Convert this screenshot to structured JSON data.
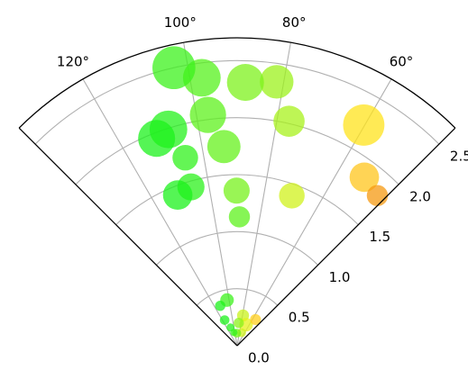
{
  "chart_data": {
    "type": "scatter",
    "projection": "polar",
    "title": "",
    "theta_range_deg": [
      45,
      135
    ],
    "r_range": [
      0,
      2.7
    ],
    "grid": true,
    "theta_ticks": [
      {
        "value": 60,
        "label": "60°"
      },
      {
        "value": 80,
        "label": "80°"
      },
      {
        "value": 100,
        "label": "100°"
      },
      {
        "value": 120,
        "label": "120°"
      }
    ],
    "r_ticks": [
      {
        "value": 0.0,
        "label": "0.0"
      },
      {
        "value": 0.5,
        "label": "0.5"
      },
      {
        "value": 1.0,
        "label": "1.0"
      },
      {
        "value": 1.5,
        "label": "1.5"
      },
      {
        "value": 2.0,
        "label": "2.0"
      },
      {
        "value": 2.5,
        "label": "2.5"
      }
    ],
    "colormap": "hsv",
    "alpha": 0.75,
    "points": [
      {
        "theta": 60.2,
        "r": 2.23,
        "size": 650,
        "color": "#ffe31c"
      },
      {
        "theta": 53.0,
        "r": 1.85,
        "size": 330,
        "color": "#ffc61c"
      },
      {
        "theta": 47.0,
        "r": 1.8,
        "size": 170,
        "color": "#f59a12"
      },
      {
        "theta": 70.0,
        "r": 1.4,
        "size": 250,
        "color": "#d0f21c"
      },
      {
        "theta": 77.0,
        "r": 2.02,
        "size": 370,
        "color": "#a8f21c"
      },
      {
        "theta": 81.5,
        "r": 2.34,
        "size": 430,
        "color": "#9cf21c"
      },
      {
        "theta": 88.2,
        "r": 2.31,
        "size": 520,
        "color": "#7ef21c"
      },
      {
        "theta": 97.5,
        "r": 2.37,
        "size": 540,
        "color": "#55f21c"
      },
      {
        "theta": 102.8,
        "r": 2.5,
        "size": 700,
        "color": "#3cf21c"
      },
      {
        "theta": 97.2,
        "r": 2.04,
        "size": 500,
        "color": "#5df21c"
      },
      {
        "theta": 93.8,
        "r": 1.75,
        "size": 420,
        "color": "#66f21c"
      },
      {
        "theta": 90.2,
        "r": 1.36,
        "size": 260,
        "color": "#77f21c"
      },
      {
        "theta": 89.0,
        "r": 1.13,
        "size": 170,
        "color": "#5df21c"
      },
      {
        "theta": 107.6,
        "r": 1.99,
        "size": 540,
        "color": "#24f21c"
      },
      {
        "theta": 111.2,
        "r": 1.95,
        "size": 520,
        "color": "#1cf21c"
      },
      {
        "theta": 105.4,
        "r": 1.71,
        "size": 250,
        "color": "#30f21c"
      },
      {
        "theta": 106.2,
        "r": 1.45,
        "size": 280,
        "color": "#2cf21c"
      },
      {
        "theta": 111.5,
        "r": 1.42,
        "size": 330,
        "color": "#1cf21c"
      },
      {
        "theta": 79.0,
        "r": 0.27,
        "size": 55,
        "color": "#c8f21c"
      },
      {
        "theta": 67.0,
        "r": 0.2,
        "size": 70,
        "color": "#e6f21c"
      },
      {
        "theta": 55.0,
        "r": 0.28,
        "size": 45,
        "color": "#ffcf1c"
      },
      {
        "theta": 71.0,
        "r": 0.12,
        "size": 30,
        "color": "#d0f21c"
      },
      {
        "theta": 86.0,
        "r": 0.2,
        "size": 40,
        "color": "#8cf21c"
      },
      {
        "theta": 102.5,
        "r": 0.41,
        "size": 70,
        "color": "#3cf21c"
      },
      {
        "theta": 116.0,
        "r": 0.25,
        "size": 35,
        "color": "#1cf21c"
      },
      {
        "theta": 110.0,
        "r": 0.17,
        "size": 25,
        "color": "#24f21c"
      },
      {
        "theta": 92.0,
        "r": 0.11,
        "size": 30,
        "color": "#70f21c"
      },
      {
        "theta": 104.0,
        "r": 0.12,
        "size": 20,
        "color": "#33f21c"
      },
      {
        "theta": 113.0,
        "r": 0.38,
        "size": 40,
        "color": "#1cf21c"
      }
    ]
  }
}
